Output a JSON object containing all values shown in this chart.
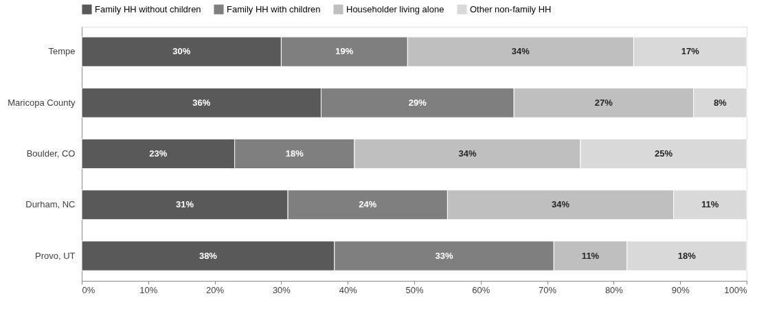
{
  "chart_data": {
    "type": "bar",
    "orientation": "horizontal",
    "stacked": true,
    "legend": "top",
    "grid": false,
    "categories": [
      "Tempe",
      "Maricopa County",
      "Boulder, CO",
      "Durham, NC",
      "Provo, UT"
    ],
    "series": [
      {
        "name": "Family HH without children",
        "color": "#595959",
        "values": [
          30,
          36,
          23,
          31,
          38
        ],
        "value_labels": [
          "30%",
          "36%",
          "23%",
          "31%",
          "38%"
        ]
      },
      {
        "name": "Family HH with children",
        "color": "#7f7f7f",
        "values": [
          19,
          29,
          18,
          24,
          33
        ],
        "value_labels": [
          "19%",
          "29%",
          "18%",
          "24%",
          "33%"
        ]
      },
      {
        "name": "Householder living alone",
        "color": "#bfbfbf",
        "values": [
          34,
          27,
          34,
          34,
          11
        ],
        "value_labels": [
          "34%",
          "27%",
          "34%",
          "34%",
          "11%"
        ]
      },
      {
        "name": "Other non-family HH",
        "color": "#d9d9d9",
        "values": [
          17,
          8,
          25,
          11,
          18
        ],
        "value_labels": [
          "17%",
          "8%",
          "25%",
          "11%",
          "18%"
        ]
      }
    ],
    "xlim": [
      0,
      100
    ],
    "xticks": [
      {
        "value": 0,
        "label": "0%"
      },
      {
        "value": 10,
        "label": "10%"
      },
      {
        "value": 20,
        "label": "20%"
      },
      {
        "value": 30,
        "label": "30%"
      },
      {
        "value": 40,
        "label": "40%"
      },
      {
        "value": 50,
        "label": "50%"
      },
      {
        "value": 60,
        "label": "60%"
      },
      {
        "value": 70,
        "label": "70%"
      },
      {
        "value": 80,
        "label": "80%"
      },
      {
        "value": 90,
        "label": "90%"
      },
      {
        "value": 100,
        "label": "100%"
      }
    ]
  }
}
